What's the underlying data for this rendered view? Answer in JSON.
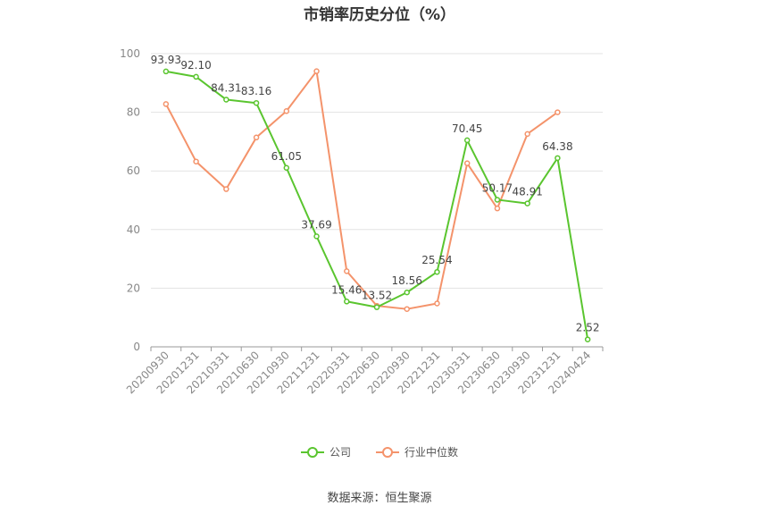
{
  "chart_data": {
    "type": "line",
    "title": "市销率历史分位（%）",
    "categories": [
      "20200930",
      "20201231",
      "20210331",
      "20210630",
      "20210930",
      "20211231",
      "20220331",
      "20220630",
      "20220930",
      "20221231",
      "20230331",
      "20230630",
      "20230930",
      "20231231",
      "20240424"
    ],
    "series": [
      {
        "name": "公司",
        "color": "#5ac52f",
        "values": [
          93.93,
          92.1,
          84.31,
          83.16,
          61.05,
          37.69,
          15.46,
          13.52,
          18.56,
          25.54,
          70.45,
          50.17,
          48.91,
          64.38,
          2.52
        ],
        "labels": [
          "93.93",
          "92.10",
          "84.31",
          "83.16",
          "61.05",
          "37.69",
          "15.46",
          "13.52",
          "18.56",
          "25.54",
          "70.45",
          "50.17",
          "48.91",
          "64.38",
          "2.52"
        ]
      },
      {
        "name": "行业中位数",
        "color": "#f4936b",
        "values": [
          82.8,
          63.2,
          53.8,
          71.4,
          80.4,
          94.0,
          25.8,
          14.0,
          12.9,
          14.8,
          62.6,
          47.2,
          72.6,
          80.0,
          null
        ]
      }
    ],
    "ylim": [
      0,
      100
    ],
    "yticks": [
      "0",
      "20",
      "40",
      "60",
      "80",
      "100"
    ],
    "grid": true,
    "legend_position": "bottom"
  },
  "source": "数据来源：恒生聚源"
}
